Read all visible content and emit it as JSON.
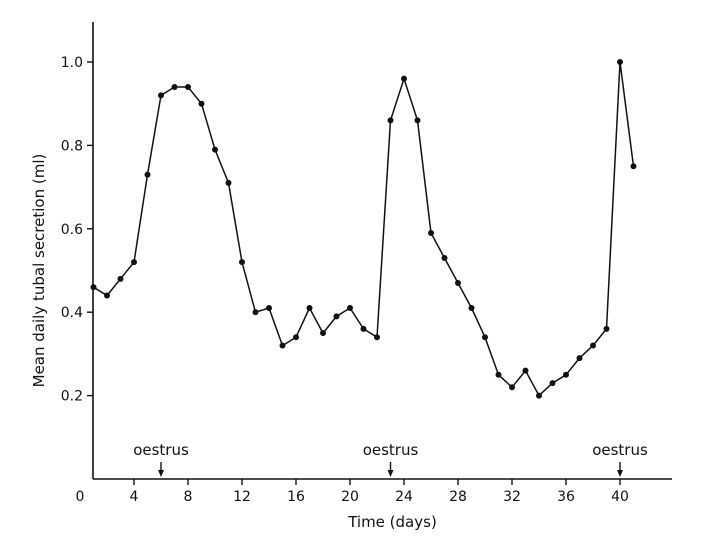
{
  "chart_data": {
    "type": "line",
    "title": "",
    "xlabel": "Time (days)",
    "ylabel": "Mean daily tubal secretion (ml)",
    "xlim": [
      0,
      42
    ],
    "ylim": [
      0,
      1.1
    ],
    "xticks": [
      0,
      4,
      8,
      12,
      16,
      20,
      24,
      28,
      32,
      36,
      40
    ],
    "yticks": [
      0.2,
      0.4,
      0.6,
      0.8,
      1.0
    ],
    "xtick_labels": [
      "0",
      "4",
      "8",
      "12",
      "16",
      "20",
      "24",
      "28",
      "32",
      "36",
      "40"
    ],
    "ytick_labels": [
      "0.2",
      "0.4",
      "0.6",
      "0.8",
      "1.0"
    ],
    "grid": false,
    "series": [
      {
        "x": [
          1,
          2,
          3,
          4,
          5,
          6,
          7,
          8,
          9,
          10,
          11,
          12,
          13,
          14,
          15,
          16,
          17,
          18,
          19,
          20,
          21,
          22,
          23,
          24,
          25,
          26,
          27,
          28,
          29,
          30,
          31,
          32,
          33,
          34,
          35,
          36,
          37,
          38,
          39,
          40,
          41
        ],
        "values": [
          0.46,
          0.44,
          0.48,
          0.52,
          0.73,
          0.92,
          0.94,
          0.94,
          0.9,
          0.79,
          0.71,
          0.52,
          0.4,
          0.41,
          0.32,
          0.34,
          0.41,
          0.35,
          0.39,
          0.41,
          0.36,
          0.34,
          0.86,
          0.96,
          0.86,
          0.59,
          0.53,
          0.47,
          0.41,
          0.34,
          0.25,
          0.22,
          0.26,
          0.2,
          0.23,
          0.25,
          0.29,
          0.32,
          0.36,
          1.0,
          0.75
        ]
      }
    ],
    "annotations": [
      {
        "text": "oestrus",
        "x": 6
      },
      {
        "text": "oestrus",
        "x": 23
      },
      {
        "text": "oestrus",
        "x": 40
      }
    ]
  }
}
